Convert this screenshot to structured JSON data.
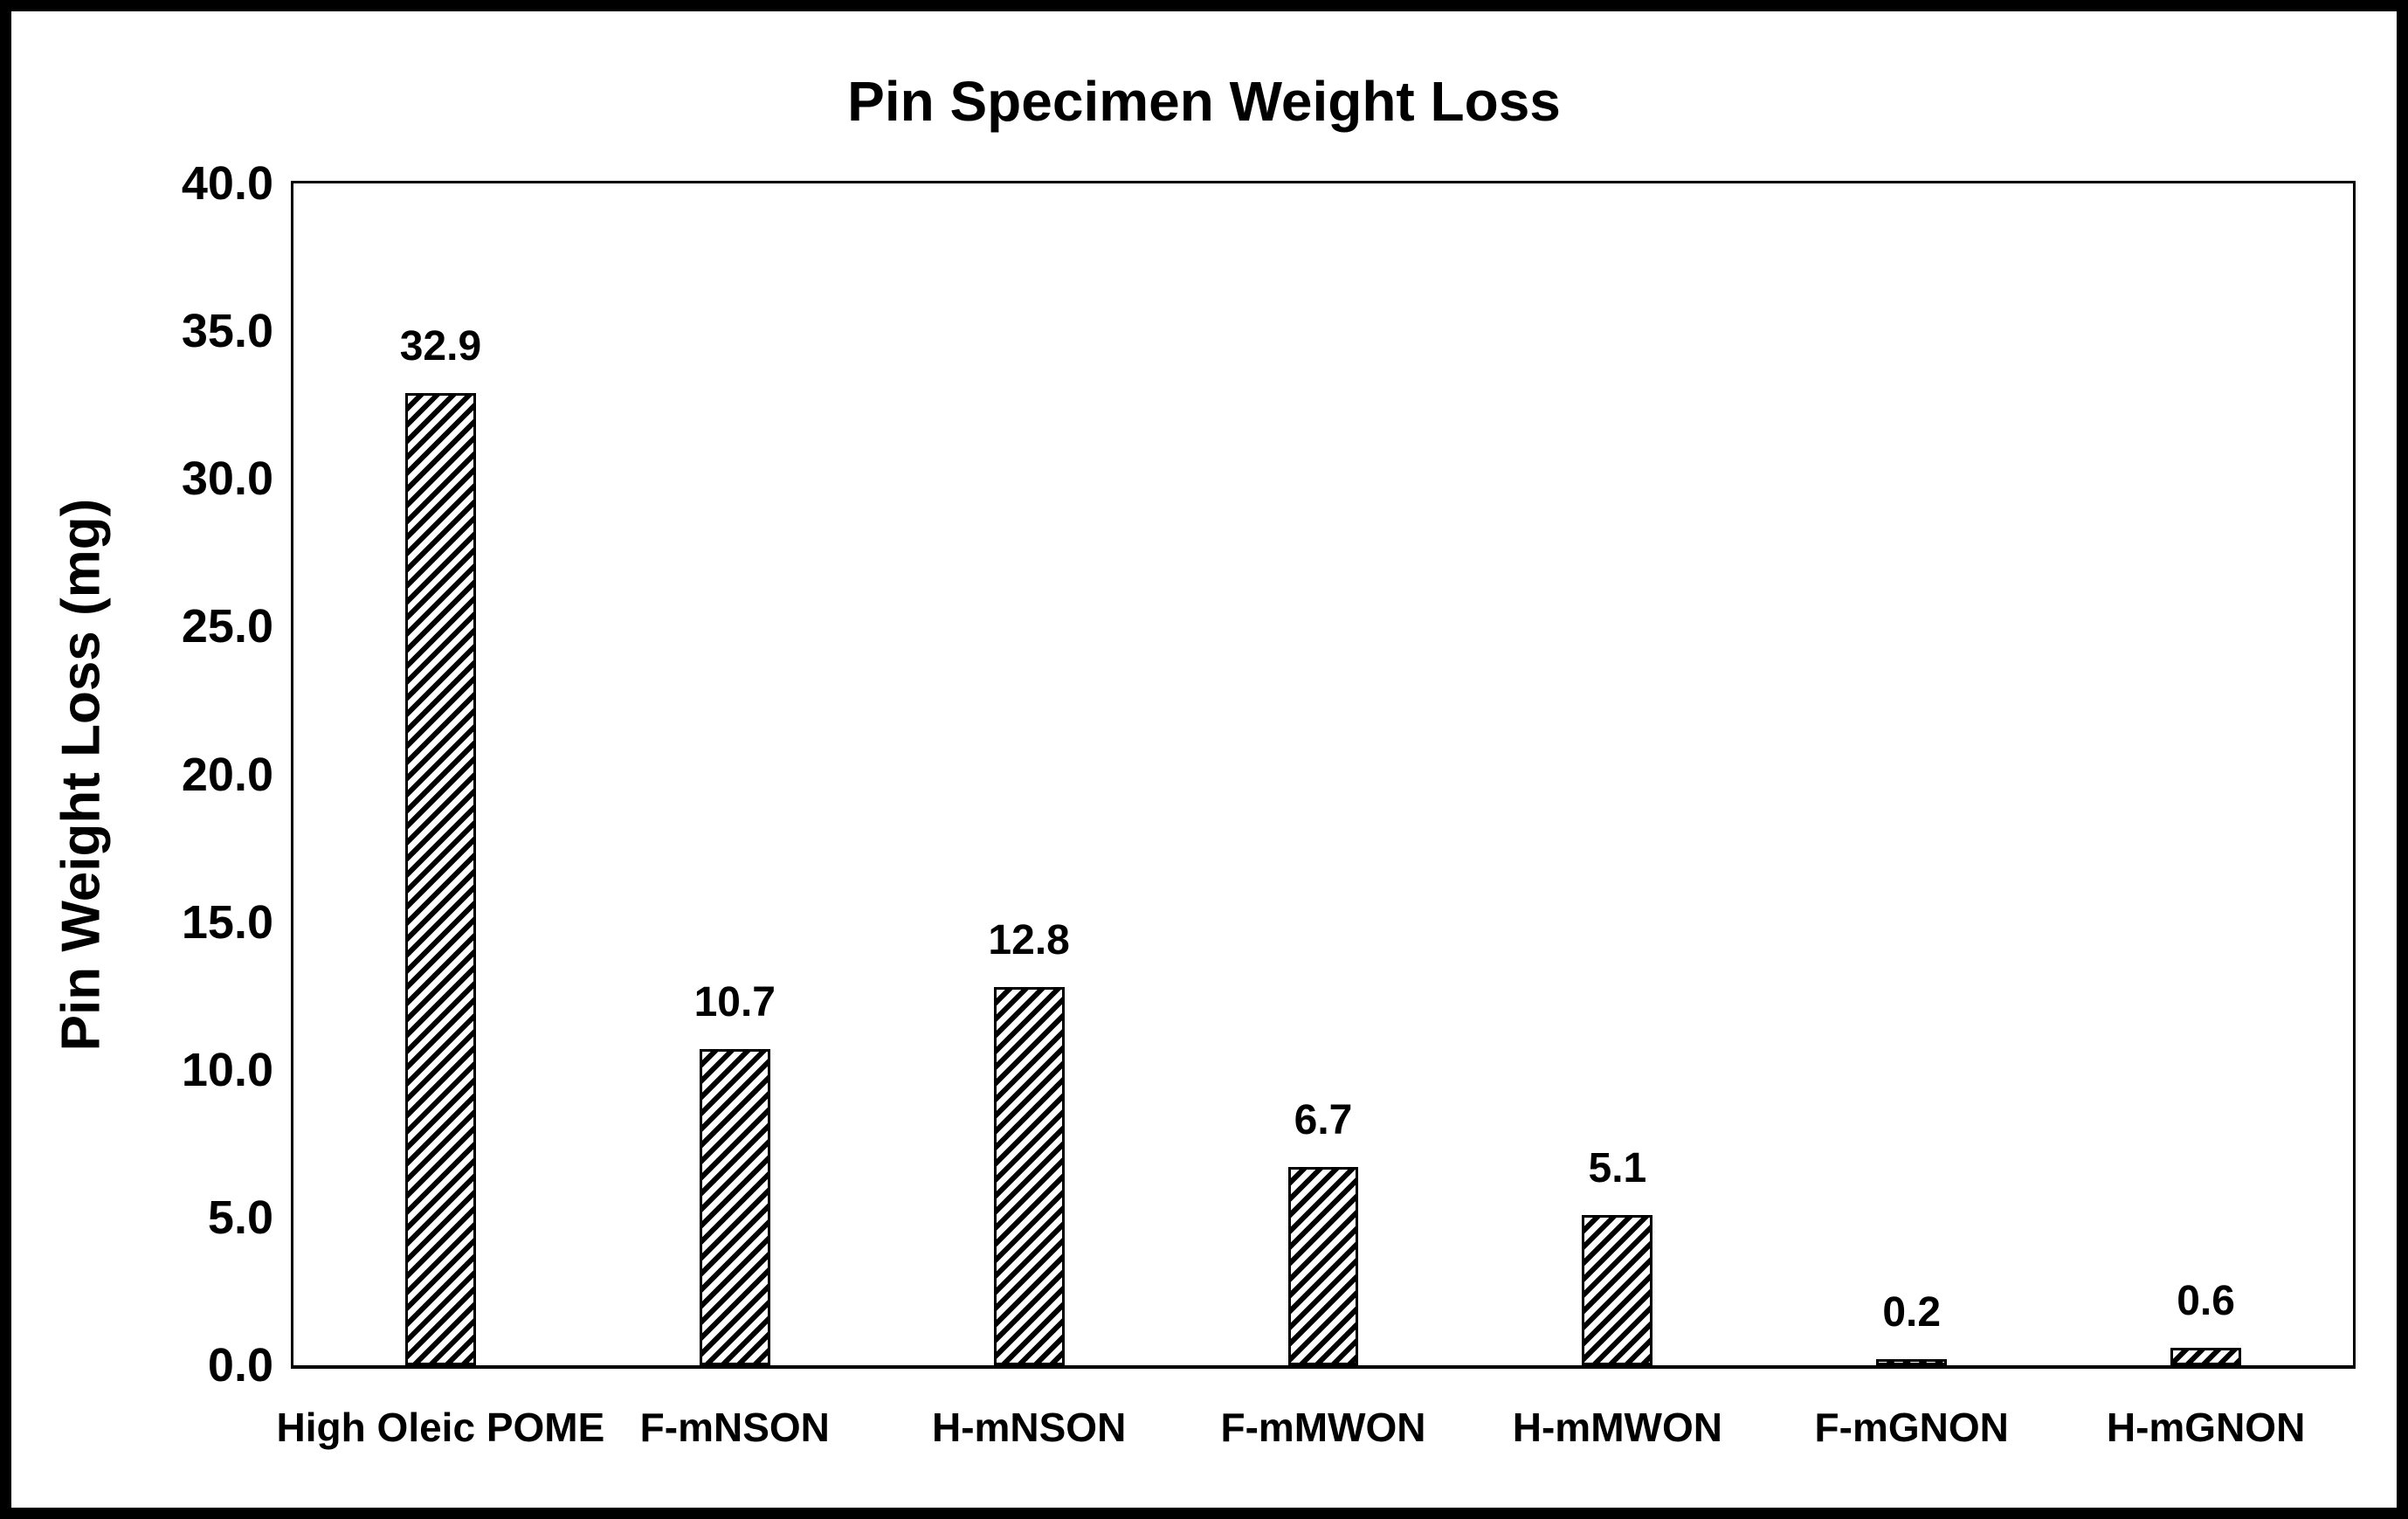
{
  "figure": {
    "background_color": "#ffffff",
    "border_color": "#000000",
    "text_color": "#000000"
  },
  "chart_data": {
    "type": "bar",
    "title": "Pin Specimen Weight Loss",
    "xlabel": "",
    "ylabel": "Pin Weight Loss (mg)",
    "categories": [
      "High Oleic POME",
      "F-mNSON",
      "H-mNSON",
      "F-mMWON",
      "H-mMWON",
      "F-mGNON",
      "H-mGNON"
    ],
    "values": [
      32.9,
      10.7,
      12.8,
      6.7,
      5.1,
      0.2,
      0.6
    ],
    "value_labels": [
      "32.9",
      "10.7",
      "12.8",
      "6.7",
      "5.1",
      "0.2",
      "0.6"
    ],
    "ylim": [
      0,
      40
    ],
    "ytick_step": 5,
    "ytick_labels": [
      "40.0",
      "35.0",
      "30.0",
      "25.0",
      "20.0",
      "15.0",
      "10.0",
      "5.0",
      "0.0"
    ],
    "grid": false,
    "legend": false,
    "bar_fill": "#ffffff",
    "bar_hatch": "diagonal-forward-slash",
    "bar_outline": "#000000"
  }
}
